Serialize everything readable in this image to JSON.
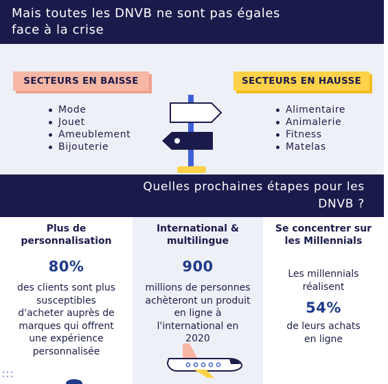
{
  "header": {
    "title_line1": "Mais toutes les DNVB ne sont pas égales",
    "title_line2": "face à la crise"
  },
  "sectors": {
    "down": {
      "label": "SECTEURS EN BAISSE",
      "items": [
        "Mode",
        "Jouet",
        "Ameublement",
        "Bijouterie"
      ]
    },
    "up": {
      "label": "SECTEURS EN HAUSSE",
      "items": [
        "Alimentaire",
        "Animalerie",
        "Fitness",
        "Matelas"
      ]
    },
    "illustration": "signpost-icon"
  },
  "next_steps": {
    "title_line1": "Quelles prochaines étapes pour les",
    "title_line2": "DNVB ?"
  },
  "columns": [
    {
      "title_line1": "Plus de",
      "title_line2": "personnalisation",
      "stat": "80%",
      "desc_lines": [
        "des clients sont plus",
        "susceptibles",
        "d'acheter auprès de",
        "marques qui offrent",
        "une expérience",
        "personnalisée"
      ]
    },
    {
      "title_line1": "International &",
      "title_line2": "multilingue",
      "stat": "900",
      "desc_lines": [
        "millions de personnes",
        "achèteront un produit",
        "en ligne à",
        "l'international en",
        "2020"
      ],
      "illustration": "airplane-icon"
    },
    {
      "title_line1": "Se concentrer sur",
      "title_line2": "les Millennials",
      "desc_before_lines": [
        "Les millennials",
        "réalisent"
      ],
      "stat": "54%",
      "desc_after_lines": [
        "de leurs achats",
        "en ligne"
      ]
    }
  ],
  "colors": {
    "navy": "#1a1b4b",
    "stat_blue": "#1f3a8a",
    "salmon": "#f7b7a5",
    "yellow": "#ffd24a",
    "light_bg": "#eef0f8"
  }
}
